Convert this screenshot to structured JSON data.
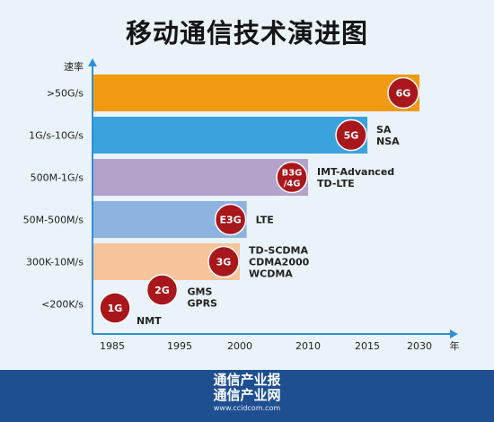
{
  "title": "移动通信技术演进图",
  "chart_data": {
    "type": "bar",
    "title": "移动通信技术演进图",
    "ylabel": "速率",
    "xlabel": "年",
    "x_ticks": [
      1985,
      1995,
      2000,
      2010,
      2015,
      2030
    ],
    "bars": [
      {
        "category": ">50G/s",
        "generation": "6G",
        "end": 2030,
        "color": "#f29a12",
        "notes": []
      },
      {
        "category": "1G/s-10G/s",
        "generation": "5G",
        "end": 2015,
        "color": "#3aa2dc",
        "notes": [
          "SA",
          "NSA"
        ]
      },
      {
        "category": "500M-1G/s",
        "generation": "B3G/4G",
        "end": 2010,
        "color": "#b3a2c9",
        "notes": [
          "IMT-Advanced",
          "TD-LTE"
        ]
      },
      {
        "category": "50M-500M/s",
        "generation": "E3G",
        "end": 2001,
        "color": "#8db3e0",
        "notes": [
          "LTE"
        ]
      },
      {
        "category": "300K-10M/s",
        "generation": "3G",
        "end": 2000,
        "color": "#f7c49c",
        "notes": [
          "TD-SCDMA",
          "CDMA2000",
          "WCDMA"
        ]
      },
      {
        "category": "<200K/s",
        "generation": "",
        "end": null,
        "color": "",
        "notes": []
      }
    ],
    "markers": [
      {
        "label": "1G",
        "year": 1985,
        "notes": [
          "NMT"
        ]
      },
      {
        "label": "2G",
        "year": 1992,
        "notes": [
          "GMS",
          "GPRS"
        ]
      }
    ]
  },
  "footer": {
    "line1": "通信产业报",
    "line2": "通信产业网",
    "url": "www.ccidcom.com"
  }
}
